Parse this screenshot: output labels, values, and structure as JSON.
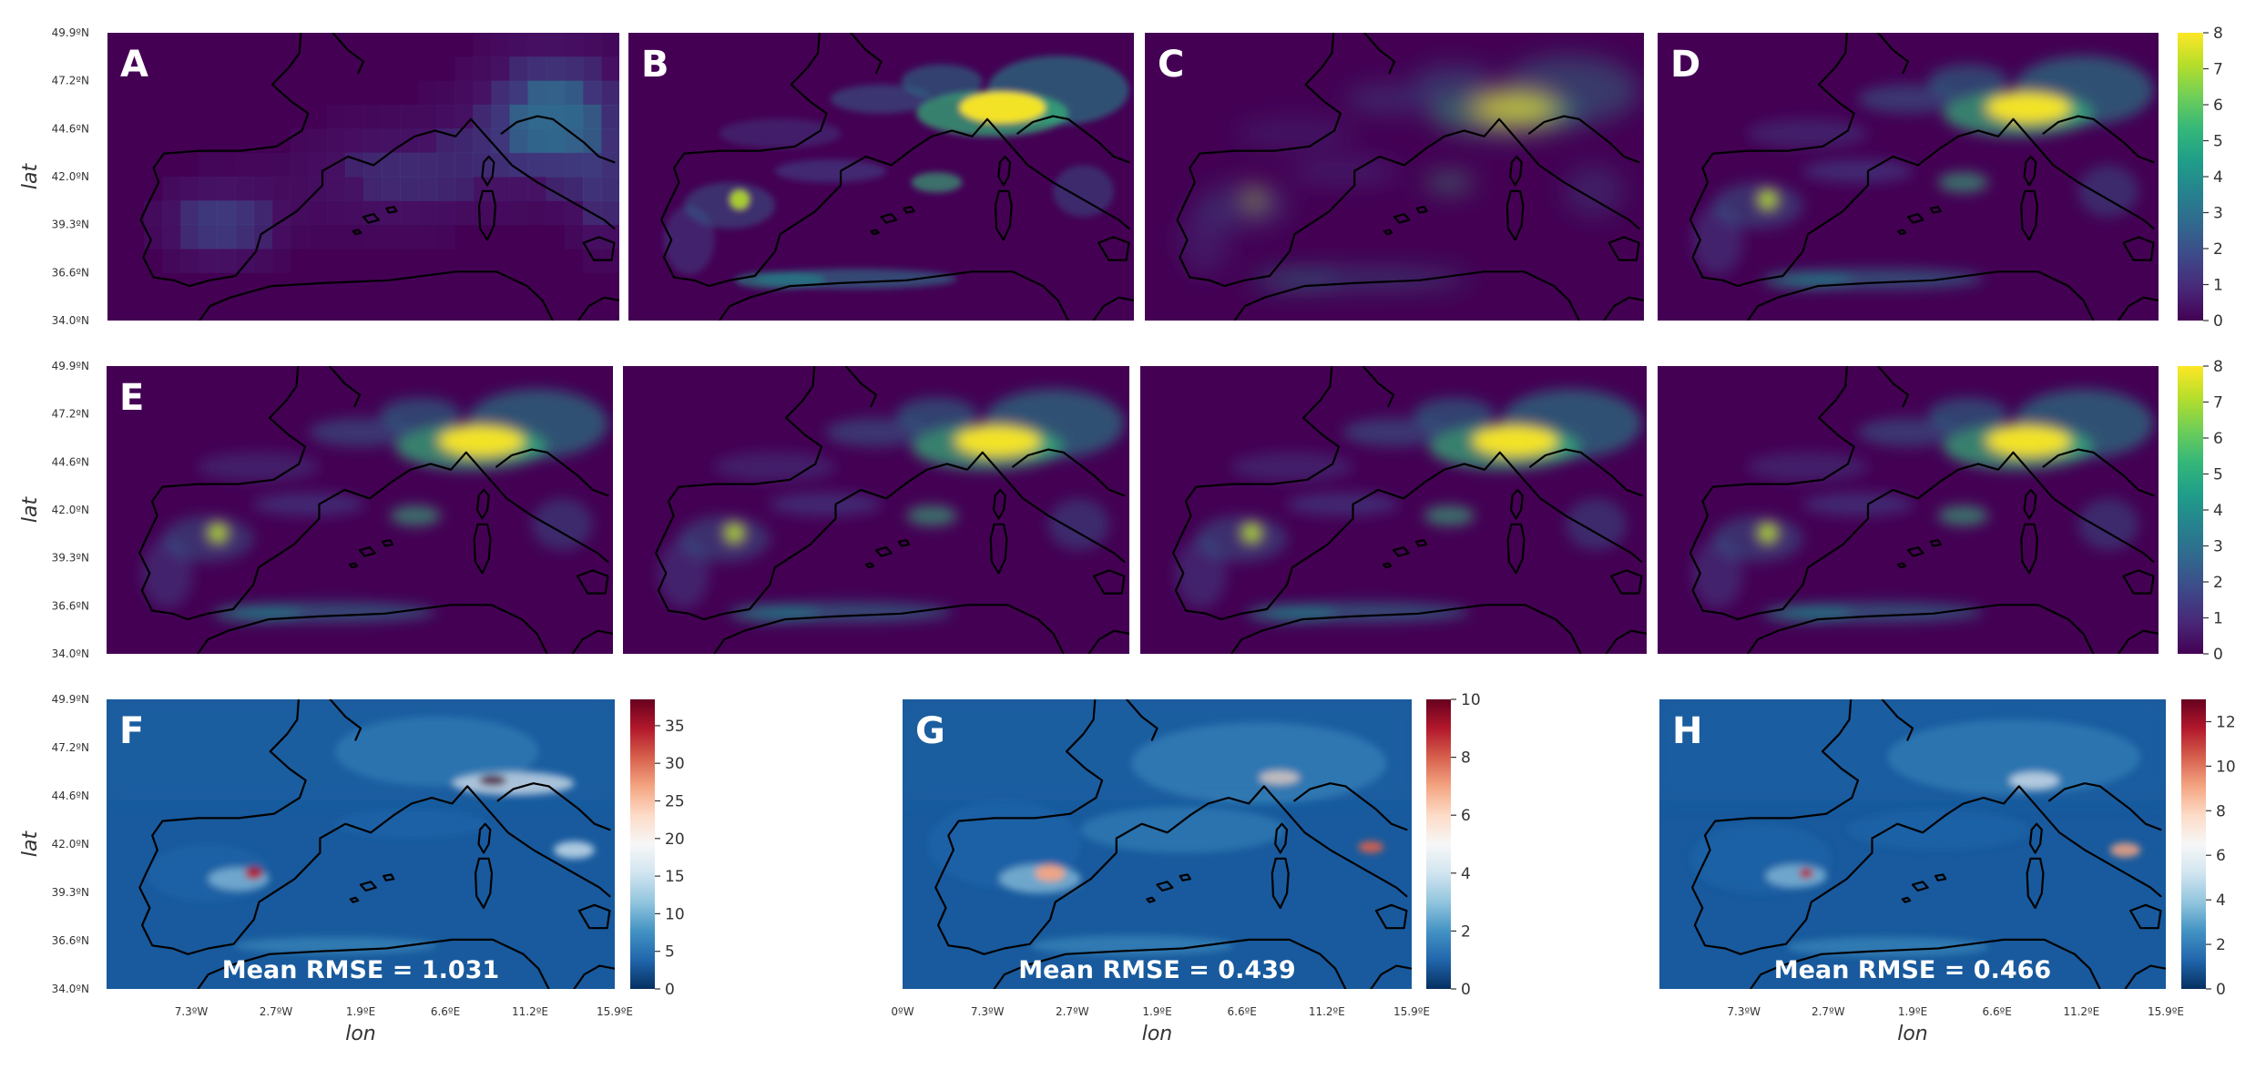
{
  "chart_data": {
    "type": "heatmap",
    "region": "Western Mediterranean / Southern Europe",
    "lat_ticks": [
      "49.9ºN",
      "47.2ºN",
      "44.6ºN",
      "42.0ºN",
      "39.3ºN",
      "36.6ºN",
      "34.0ºN"
    ],
    "lon_ticks": [
      "7.3ºW",
      "2.7ºW",
      "1.9ºE",
      "6.6ºE",
      "11.2ºE",
      "15.9ºE"
    ],
    "lon_ticks_panel_g": [
      "0ºW",
      "7.3ºW",
      "2.7ºW",
      "1.9ºE",
      "6.6ºE",
      "11.2ºE",
      "15.9ºE"
    ],
    "xlabel": "lon",
    "ylabel": "lat",
    "colorbars": [
      {
        "id": "viridis-row1",
        "colormap": "viridis",
        "ticks": [
          "0",
          "1",
          "2",
          "3",
          "4",
          "5",
          "6",
          "7",
          "8"
        ],
        "range": [
          0,
          8
        ]
      },
      {
        "id": "viridis-row2",
        "colormap": "viridis",
        "ticks": [
          "0",
          "1",
          "2",
          "3",
          "4",
          "5",
          "6",
          "7",
          "8"
        ],
        "range": [
          0,
          8
        ]
      },
      {
        "id": "rdbu-f",
        "colormap": "RdBu_r",
        "ticks": [
          "0",
          "5",
          "10",
          "15",
          "20",
          "25",
          "30",
          "35"
        ],
        "range": [
          0,
          38.5
        ]
      },
      {
        "id": "rdbu-g",
        "colormap": "RdBu_r",
        "ticks": [
          "0",
          "2",
          "4",
          "6",
          "8",
          "10"
        ],
        "range": [
          0,
          10
        ]
      },
      {
        "id": "rdbu-h",
        "colormap": "RdBu_r",
        "ticks": [
          "0",
          "2",
          "4",
          "6",
          "8",
          "10",
          "12"
        ],
        "range": [
          0,
          13
        ]
      }
    ],
    "panels": [
      {
        "letter": "A",
        "colormap": "viridis",
        "style": "coarse"
      },
      {
        "letter": "B",
        "colormap": "viridis",
        "style": "sharp"
      },
      {
        "letter": "C",
        "colormap": "viridis",
        "style": "smooth"
      },
      {
        "letter": "D",
        "colormap": "viridis",
        "style": "medium"
      },
      {
        "letter": "E",
        "colormap": "viridis",
        "style": "medium"
      },
      {
        "letter": "",
        "colormap": "viridis",
        "style": "medium"
      },
      {
        "letter": "",
        "colormap": "viridis",
        "style": "medium"
      },
      {
        "letter": "",
        "colormap": "viridis",
        "style": "medium"
      },
      {
        "letter": "F",
        "colormap": "RdBu_r",
        "metric": "Mean RMSE = 1.031",
        "mean_rmse": 1.031,
        "max": 38.5
      },
      {
        "letter": "G",
        "colormap": "RdBu_r",
        "metric": "Mean RMSE = 0.439",
        "mean_rmse": 0.439,
        "max": 10
      },
      {
        "letter": "H",
        "colormap": "RdBu_r",
        "metric": "Mean RMSE = 0.466",
        "mean_rmse": 0.466,
        "max": 13
      }
    ],
    "colors": {
      "viridis_low": "#440154",
      "viridis_mid": "#21918c",
      "viridis_high": "#fde725",
      "rdbu_low": "#053061",
      "rdbu_mid": "#f7f7f7",
      "rdbu_high": "#67001f",
      "coastline": "#000000"
    }
  }
}
